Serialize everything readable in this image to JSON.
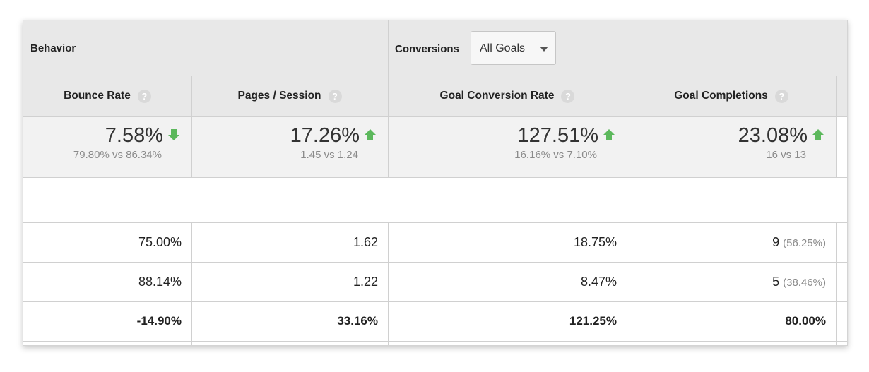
{
  "header": {
    "behavior_label": "Behavior",
    "conversions_label": "Conversions",
    "goals_dropdown": {
      "selected": "All Goals"
    }
  },
  "columns": [
    {
      "label": "Bounce Rate",
      "help": "?"
    },
    {
      "label": "Pages / Session",
      "help": "?"
    },
    {
      "label": "Goal Conversion Rate",
      "help": "?"
    },
    {
      "label": "Goal Completions",
      "help": "?"
    }
  ],
  "summary": [
    {
      "change": "7.58%",
      "compare": "79.80% vs 86.34%",
      "direction": "down"
    },
    {
      "change": "17.26%",
      "compare": "1.45 vs 1.24",
      "direction": "up"
    },
    {
      "change": "127.51%",
      "compare": "16.16% vs 7.10%",
      "direction": "up"
    },
    {
      "change": "23.08%",
      "compare": "16 vs 13",
      "direction": "up"
    }
  ],
  "rows": [
    {
      "cells": [
        "75.00%",
        "1.62",
        "18.75%",
        "9"
      ],
      "completion_pct": "(56.25%)"
    },
    {
      "cells": [
        "88.14%",
        "1.22",
        "8.47%",
        "5"
      ],
      "completion_pct": "(38.46%)"
    },
    {
      "cells": [
        "-14.90%",
        "33.16%",
        "121.25%",
        "80.00%"
      ],
      "bold": true
    }
  ],
  "colors": {
    "arrow": "#5cb85c",
    "header_bg": "#e8e8e8",
    "summary_bg": "#f2f2f2"
  }
}
